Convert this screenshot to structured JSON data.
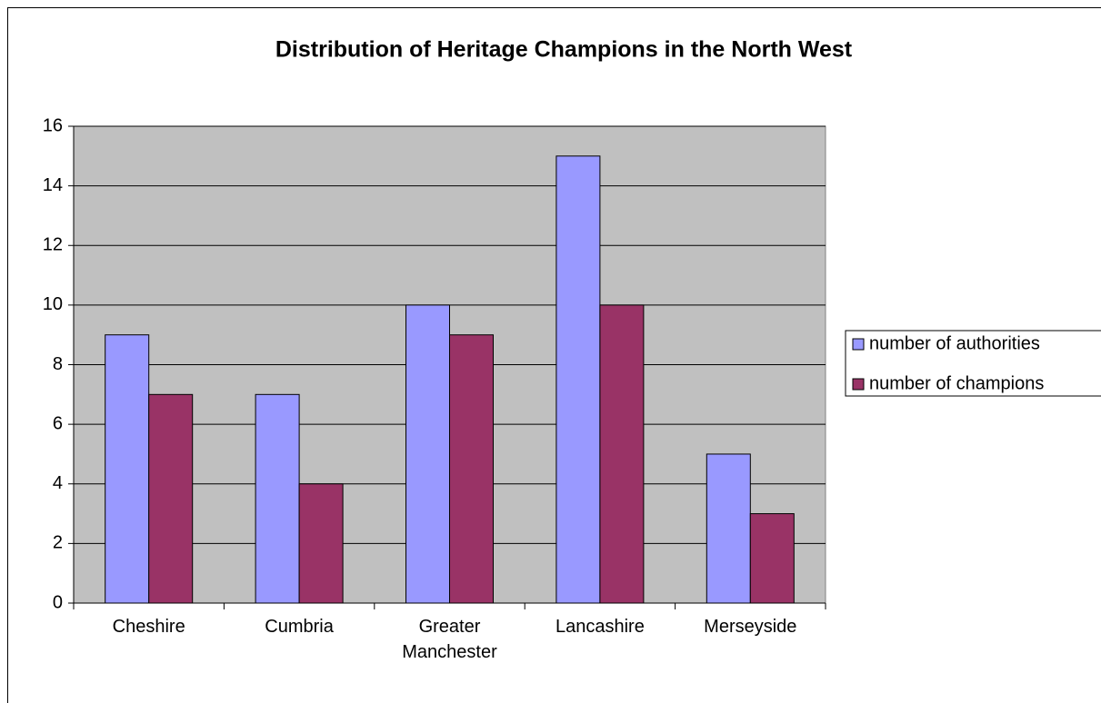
{
  "chart_data": {
    "type": "bar",
    "title": "Distribution of Heritage Champions in the North West",
    "categories": [
      "Cheshire",
      "Cumbria",
      "Greater Manchester",
      "Lancashire",
      "Merseyside"
    ],
    "series": [
      {
        "name": "number of authorities",
        "color": "#9999ff",
        "values": [
          9,
          7,
          10,
          15,
          5
        ]
      },
      {
        "name": "number of champions",
        "color": "#993366",
        "values": [
          7,
          4,
          9,
          10,
          3
        ]
      }
    ],
    "ylim": [
      0,
      16
    ],
    "yticks": [
      0,
      2,
      4,
      6,
      8,
      10,
      12,
      14,
      16
    ],
    "grid": true,
    "legend": "right",
    "plot_background": "#c0c0c0"
  }
}
